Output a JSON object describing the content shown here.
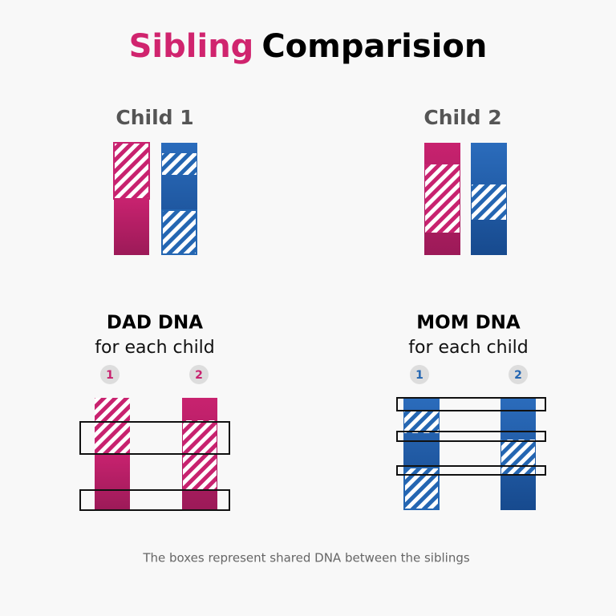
{
  "title": {
    "highlight": "Sibling",
    "rest": "Comparision"
  },
  "children": [
    {
      "label": "Child 1"
    },
    {
      "label": "Child 2"
    }
  ],
  "panels": [
    {
      "heading": "DAD DNA",
      "subheading": "for each child",
      "badges": [
        "1",
        "2"
      ]
    },
    {
      "heading": "MOM DNA",
      "subheading": "for each child",
      "badges": [
        "1",
        "2"
      ]
    }
  ],
  "caption": "The boxes represent shared DNA between the siblings"
}
